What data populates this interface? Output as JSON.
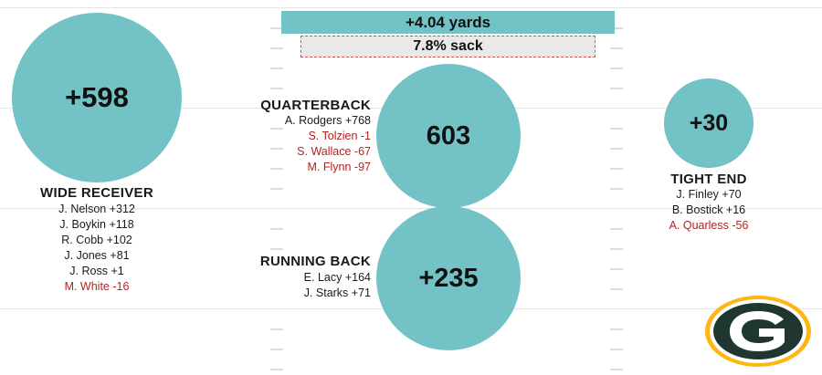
{
  "summary": {
    "yards_label": "+4.04 yards",
    "sack_label": "7.8% sack"
  },
  "groups": {
    "wide_receiver": {
      "title": "WIDE RECEIVER",
      "total": "+598",
      "players": [
        {
          "text": "J. Nelson +312",
          "negative": false
        },
        {
          "text": "J. Boykin +118",
          "negative": false
        },
        {
          "text": "R. Cobb +102",
          "negative": false
        },
        {
          "text": "J. Jones +81",
          "negative": false
        },
        {
          "text": "J. Ross +1",
          "negative": false
        },
        {
          "text": "M. White -16",
          "negative": true
        }
      ]
    },
    "quarterback": {
      "title": "QUARTERBACK",
      "total": "603",
      "players": [
        {
          "text": "A. Rodgers +768",
          "negative": false
        },
        {
          "text": "S. Tolzien -1",
          "negative": true
        },
        {
          "text": "S. Wallace -67",
          "negative": true
        },
        {
          "text": "M. Flynn -97",
          "negative": true
        }
      ]
    },
    "running_back": {
      "title": "RUNNING BACK",
      "total": "+235",
      "players": [
        {
          "text": "E. Lacy +164",
          "negative": false
        },
        {
          "text": "J. Starks +71",
          "negative": false
        }
      ]
    },
    "tight_end": {
      "title": "TIGHT END",
      "total": "+30",
      "players": [
        {
          "text": "J. Finley +70",
          "negative": false
        },
        {
          "text": "B. Bostick +16",
          "negative": false
        },
        {
          "text": "A. Quarless -56",
          "negative": true
        }
      ]
    }
  },
  "colors": {
    "circle_fill": "#72c2c6",
    "negative_text": "#b5221f",
    "logo_green": "#203731",
    "logo_gold": "#ffb612"
  },
  "logo": {
    "icon": "green-bay-packers-g-logo"
  },
  "chart_data": {
    "type": "bubble",
    "title": "",
    "categories": [
      "WIDE RECEIVER",
      "QUARTERBACK",
      "RUNNING BACK",
      "TIGHT END"
    ],
    "values": [
      598,
      603,
      235,
      30
    ],
    "summary_values": {
      "yards_per_play": 4.04,
      "sack_rate_percent": 7.8
    }
  }
}
